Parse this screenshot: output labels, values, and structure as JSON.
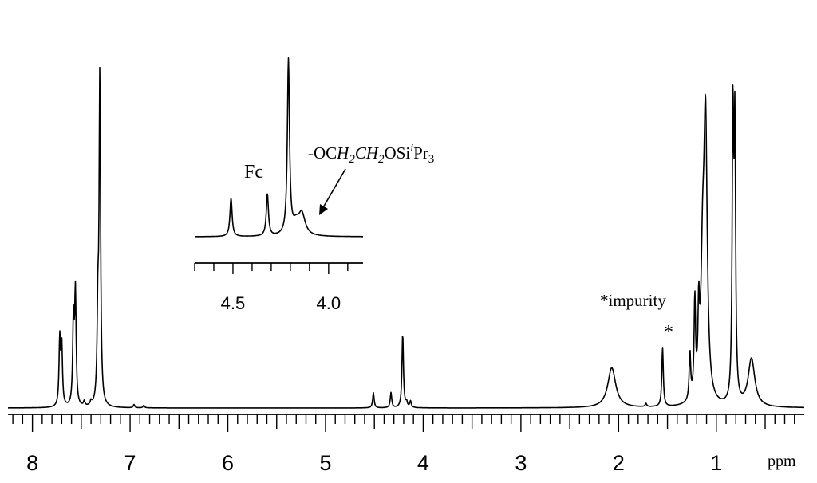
{
  "chart_data": {
    "type": "line",
    "xlabel": "ppm",
    "xlim": [
      8.25,
      0.1
    ],
    "reversed_x": true,
    "x_ticks": [
      "8",
      "7",
      "6",
      "5",
      "4",
      "3",
      "2",
      "1"
    ],
    "peaks": [
      {
        "ppm": 7.72,
        "h": 0.165
      },
      {
        "ppm": 7.7,
        "h": 0.15
      },
      {
        "ppm": 7.58,
        "h": 0.21
      },
      {
        "ppm": 7.56,
        "h": 0.28
      },
      {
        "ppm": 7.33,
        "h": 0.21
      },
      {
        "ppm": 7.31,
        "h": 0.82
      },
      {
        "ppm": 7.47,
        "h": 0.012
      },
      {
        "ppm": 7.4,
        "h": 0.01
      },
      {
        "ppm": 6.96,
        "h": 0.008
      },
      {
        "ppm": 6.86,
        "h": 0.006
      },
      {
        "ppm": 4.51,
        "h": 0.038
      },
      {
        "ppm": 4.33,
        "h": 0.038
      },
      {
        "ppm": 4.21,
        "h": 0.185
      },
      {
        "ppm": 4.17,
        "h": 0.012
      },
      {
        "ppm": 4.13,
        "h": 0.016
      },
      {
        "ppm": 2.07,
        "h": 0.1
      },
      {
        "ppm": 1.72,
        "h": 0.008
      },
      {
        "ppm": 1.55,
        "h": 0.148
      },
      {
        "ppm": 1.27,
        "h": 0.12
      },
      {
        "ppm": 1.22,
        "h": 0.24
      },
      {
        "ppm": 1.18,
        "h": 0.19
      },
      {
        "ppm": 1.14,
        "h": 0.3
      },
      {
        "ppm": 1.11,
        "h": 0.68
      },
      {
        "ppm": 0.83,
        "h": 0.7
      },
      {
        "ppm": 0.81,
        "h": 0.66
      },
      {
        "ppm": 0.64,
        "h": 0.12
      }
    ],
    "annotations": [
      {
        "text": "*impurity",
        "ppm": 1.55
      },
      {
        "text": "*",
        "ppm": 1.55
      }
    ],
    "inset": {
      "xlim": [
        4.7,
        3.82
      ],
      "x_ticks": [
        "4.5",
        "4.0"
      ],
      "label_fc": "Fc",
      "label_group_prefix": "-OC",
      "label_h2a": "H",
      "label_sub2a": "2",
      "label_c": "C",
      "label_h2b": "H",
      "label_sub2b": "2",
      "label_osi": "OSi",
      "label_sup_i": "i",
      "label_pr": "Pr",
      "label_sub3": "3",
      "peaks": [
        {
          "ppm": 4.51,
          "h": 0.22
        },
        {
          "ppm": 4.32,
          "h": 0.24
        },
        {
          "ppm": 4.21,
          "h": 1.0
        },
        {
          "ppm": 4.17,
          "h": 0.06
        },
        {
          "ppm": 4.14,
          "h": 0.12
        }
      ]
    }
  }
}
